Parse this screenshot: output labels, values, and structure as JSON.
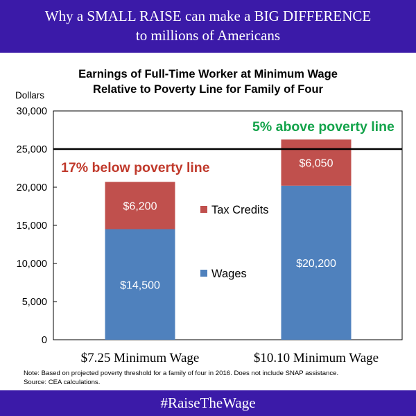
{
  "header": {
    "line1": "Why a SMALL RAISE can make a BIG DIFFERENCE",
    "line2": "to millions of Americans",
    "background": "#3b1aa8"
  },
  "chart_data": {
    "type": "bar",
    "stacked": true,
    "title_line1": "Earnings of Full-Time Worker at Minimum Wage",
    "title_line2": "Relative to Poverty Line for Family of Four",
    "ylabel": "Dollars",
    "xlabel": "",
    "ylim": [
      0,
      30000
    ],
    "yticks": [
      0,
      5000,
      10000,
      15000,
      20000,
      25000,
      30000
    ],
    "ytick_labels": [
      "0",
      "5,000",
      "10,000",
      "15,000",
      "20,000",
      "25,000",
      "30,000"
    ],
    "categories": [
      "$7.25 Minimum Wage",
      "$10.10 Minimum Wage"
    ],
    "series": [
      {
        "name": "Wages",
        "color": "#4f81bd",
        "values": [
          14500,
          20200
        ],
        "labels": [
          "$14,500",
          "$20,200"
        ]
      },
      {
        "name": "Tax Credits",
        "color": "#c0504d",
        "values": [
          6200,
          6050
        ],
        "labels": [
          "$6,200",
          "$6,050"
        ]
      }
    ],
    "poverty_line": 25000,
    "annotations": [
      {
        "text": "17% below poverty line",
        "color": "#c0392b"
      },
      {
        "text": "5% above poverty line",
        "color": "#13a34a"
      }
    ],
    "grid": false,
    "legend_placement": "between bars"
  },
  "note": {
    "line1": "Note: Based on projected poverty threshold for a family of four in 2016. Does not include SNAP assistance.",
    "line2": "Source: CEA calculations."
  },
  "footer": {
    "hashtag": "#RaiseTheWage",
    "background": "#3b1aa8"
  }
}
